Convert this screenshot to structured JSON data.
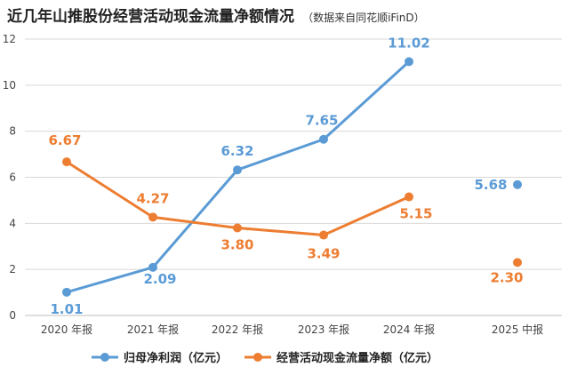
{
  "title": "近几年山推股份经营活动现金流量净额情况",
  "subtitle": "（数据来自同花顺iFinD）",
  "chart_data": {
    "type": "line",
    "categories": [
      "2020 年报",
      "2021 年报",
      "2022 年报",
      "2023 年报",
      "2024 年报",
      "2025 中报"
    ],
    "ylim": [
      0,
      12
    ],
    "yticks": [
      0,
      2,
      4,
      6,
      8,
      10,
      12
    ],
    "grid": true,
    "legend_position": "bottom",
    "series": [
      {
        "name": "归母净利润（亿元）",
        "color": "#5B9BD5",
        "values": [
          1.01,
          2.09,
          6.32,
          7.65,
          11.02,
          5.68
        ],
        "labels": [
          "1.01",
          "2.09",
          "6.32",
          "7.65",
          "11.02",
          "5.68"
        ],
        "connected_points": 5
      },
      {
        "name": "经营活动现金流量净额（亿元）",
        "color": "#ED7D31",
        "values": [
          6.67,
          4.27,
          3.8,
          3.49,
          5.15,
          2.3
        ],
        "labels": [
          "6.67",
          "4.27",
          "3.80",
          "3.49",
          "5.15",
          "2.30"
        ],
        "connected_points": 5
      }
    ]
  }
}
